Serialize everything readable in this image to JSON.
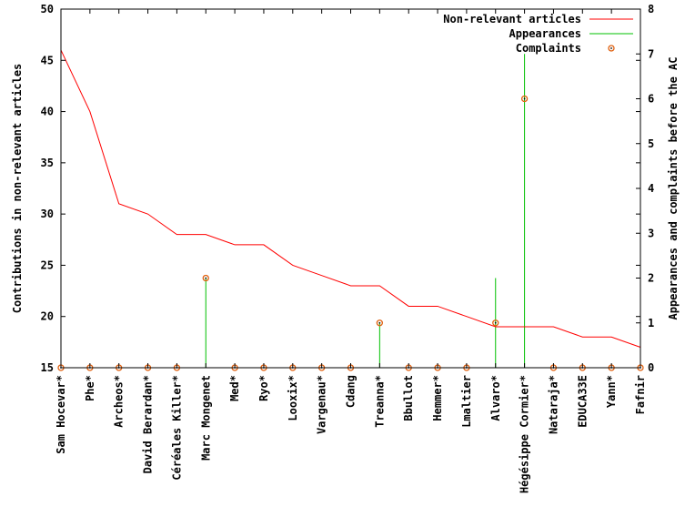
{
  "chart_data": {
    "type": "line",
    "categories": [
      "Sam Hocevar*",
      "Phe*",
      "Archeos*",
      "David Berardan*",
      "Céréales Killer*",
      "Marc Mongenet",
      "Med*",
      "Ryo*",
      "Looxix*",
      "Vargenau*",
      "Cdang",
      "Treanna*",
      "Bbullot",
      "Hemmer*",
      "Lmaltier",
      "Alvaro*",
      "Hégésippe Cormier*",
      "Nataraja*",
      "EDUCA33E",
      "Yann*",
      "Fafnir"
    ],
    "series": [
      {
        "name": "Non-relevant articles",
        "axis": "left",
        "style": "line",
        "color": "#ff0000",
        "values": [
          46,
          40,
          31,
          30,
          28,
          28,
          27,
          27,
          25,
          24,
          23,
          23,
          21,
          21,
          20,
          19,
          19,
          19,
          18,
          18,
          17
        ]
      },
      {
        "name": "Appearances",
        "axis": "right",
        "style": "impulses",
        "color": "#00c000",
        "values": [
          0,
          0,
          0,
          0,
          0,
          2,
          0,
          0,
          0,
          0,
          0,
          1,
          0,
          0,
          0,
          2,
          7,
          0,
          0,
          0,
          0
        ]
      },
      {
        "name": "Complaints",
        "axis": "right",
        "style": "points",
        "color": "#e0600f",
        "values": [
          0,
          0,
          0,
          0,
          0,
          2,
          0,
          0,
          0,
          0,
          0,
          1,
          0,
          0,
          0,
          1,
          6,
          0,
          0,
          0,
          0
        ]
      }
    ],
    "ylabel": "Contributions in non-relevant articles",
    "y2label": "Appearances and complaints before the AC",
    "ylim": [
      15,
      50
    ],
    "y2lim": [
      0,
      8
    ],
    "yticks": [
      "15",
      "20",
      "25",
      "30",
      "35",
      "40",
      "45",
      "50"
    ],
    "y2ticks": [
      "0",
      "1",
      "2",
      "3",
      "4",
      "5",
      "6",
      "7",
      "8"
    ],
    "legend_position": "top-right",
    "grid": false
  }
}
